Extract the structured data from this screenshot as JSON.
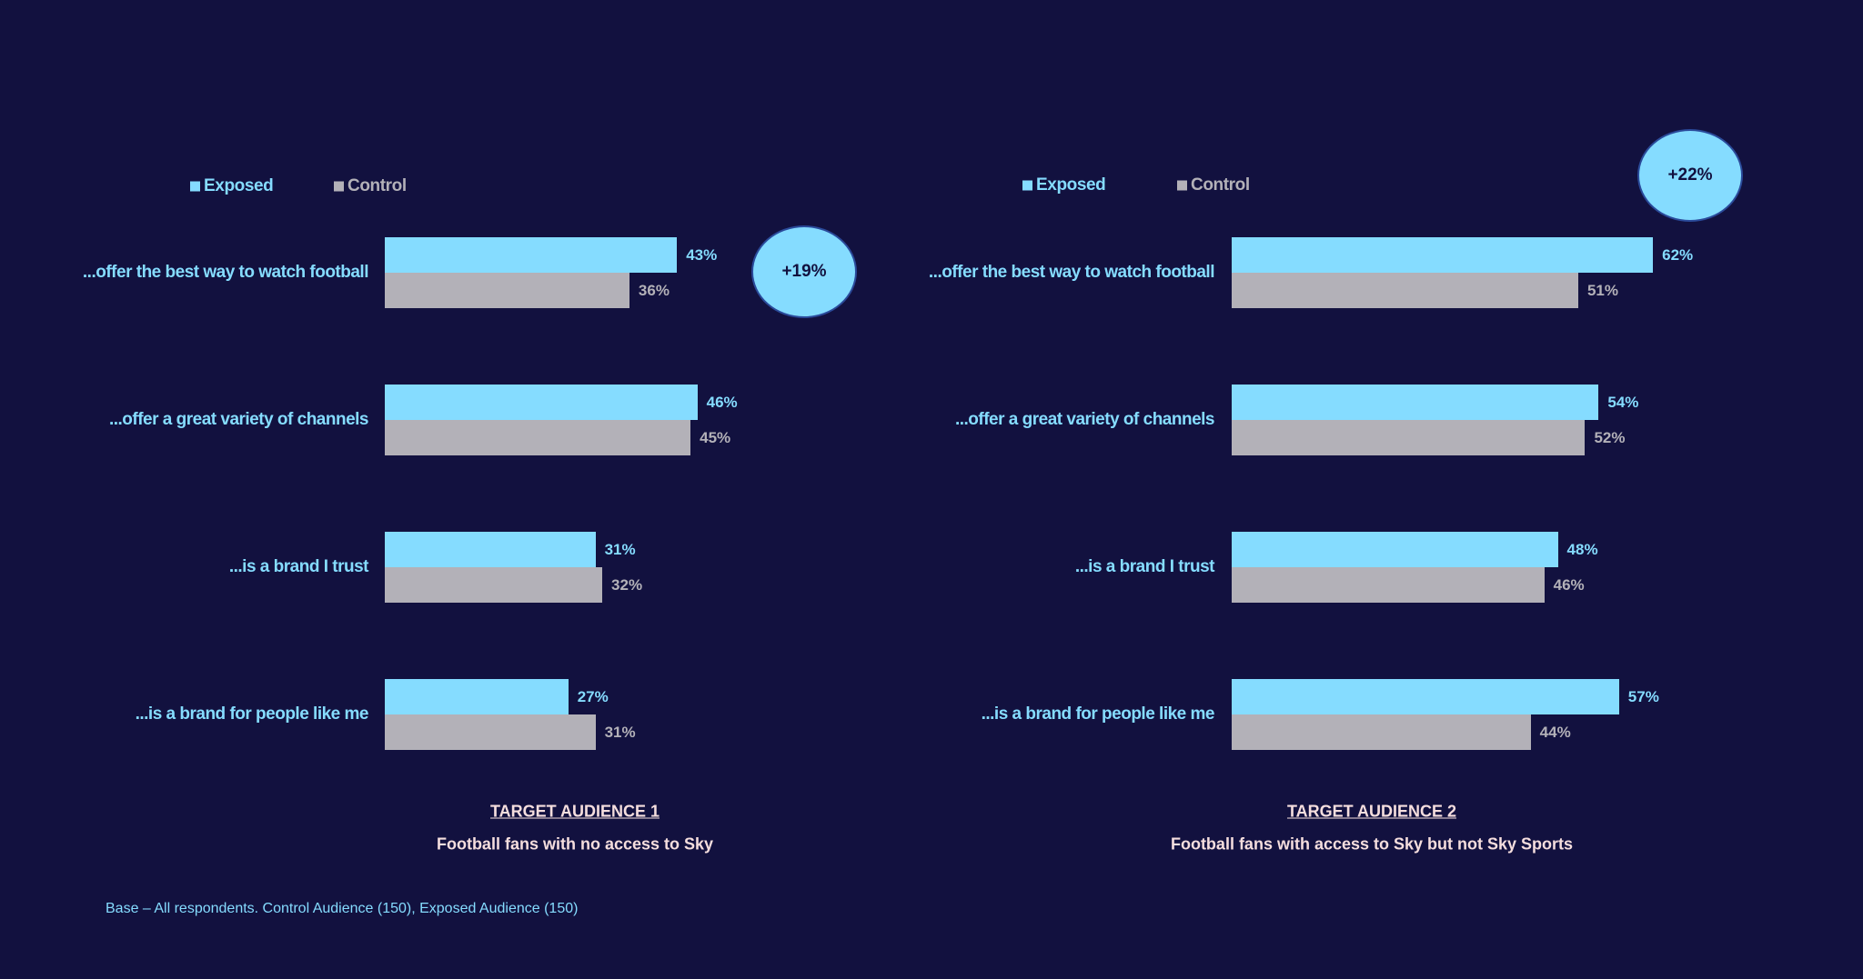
{
  "chart_data": [
    {
      "type": "bar",
      "title": "TARGET AUDIENCE 1",
      "subtitle": "Football fans with no access to Sky",
      "annotation": "+19%",
      "categories": [
        "...offer the best way to watch football",
        "...offer a great variety of channels",
        "...is a brand I trust",
        "...is a brand for people like me"
      ],
      "series": [
        {
          "name": "Exposed",
          "color": "#85dcff",
          "values": [
            43,
            46,
            31,
            27
          ],
          "value_labels": [
            "43%",
            "46%",
            "31%",
            "27%"
          ]
        },
        {
          "name": "Control",
          "color": "#b3b1b8",
          "values": [
            36,
            45,
            32,
            31
          ],
          "value_labels": [
            "36%",
            "45%",
            "32%",
            "31%"
          ]
        }
      ]
    },
    {
      "type": "bar",
      "title": "TARGET AUDIENCE 2",
      "subtitle": "Football fans with access to Sky but not Sky Sports",
      "annotation": "+22%",
      "categories": [
        "...offer the best way to watch football",
        "...offer a great variety of channels",
        "...is a brand I trust",
        "...is a brand for people like me"
      ],
      "series": [
        {
          "name": "Exposed",
          "color": "#85dcff",
          "values": [
            62,
            54,
            48,
            57
          ],
          "value_labels": [
            "62%",
            "54%",
            "48%",
            "57%"
          ]
        },
        {
          "name": "Control",
          "color": "#b3b1b8",
          "values": [
            51,
            52,
            46,
            44
          ],
          "value_labels": [
            "51%",
            "52%",
            "46%",
            "44%"
          ]
        }
      ]
    }
  ],
  "footnote": "Base – All respondents. Control Audience (150), Exposed Audience (150)"
}
